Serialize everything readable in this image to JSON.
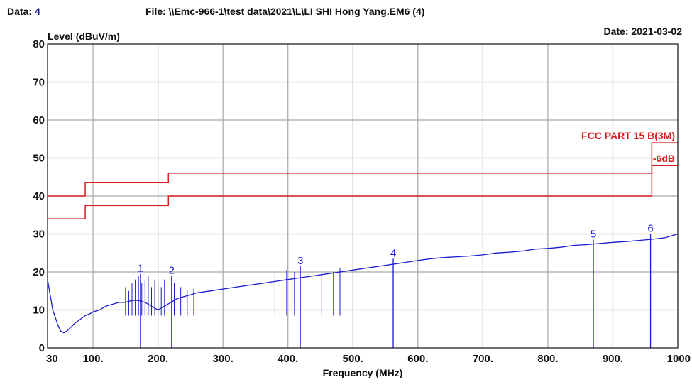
{
  "header": {
    "data_label": "Data:",
    "data_value": "4",
    "file_text": "File: \\\\Emc-966-1\\test data\\2021\\L\\LI SHI Hong Yang.EM6  (4)",
    "date_text": "Date: 2021-03-02"
  },
  "colors": {
    "trace": "#1a1ad0",
    "limit": "#d42020",
    "grid": "#a8a8a8",
    "text": "#111111"
  },
  "chart_data": {
    "type": "line",
    "title": "",
    "xlabel": "Frequency (MHz)",
    "ylabel": "Level (dBuV/m)",
    "xlim": [
      30,
      1000
    ],
    "ylim": [
      0,
      80
    ],
    "grid": true,
    "x_ticks": [
      {
        "value": 30,
        "label": "30"
      },
      {
        "value": 100,
        "label": "100."
      },
      {
        "value": 200,
        "label": "200."
      },
      {
        "value": 300,
        "label": "300."
      },
      {
        "value": 400,
        "label": "400."
      },
      {
        "value": 500,
        "label": "500."
      },
      {
        "value": 600,
        "label": "600."
      },
      {
        "value": 700,
        "label": "700."
      },
      {
        "value": 800,
        "label": "800."
      },
      {
        "value": 900,
        "label": "900."
      },
      {
        "value": 1000,
        "label": "1000"
      }
    ],
    "y_ticks": [
      {
        "value": 0,
        "label": "0"
      },
      {
        "value": 10,
        "label": "10"
      },
      {
        "value": 20,
        "label": "20"
      },
      {
        "value": 30,
        "label": "30"
      },
      {
        "value": 40,
        "label": "40"
      },
      {
        "value": 50,
        "label": "50"
      },
      {
        "value": 60,
        "label": "60"
      },
      {
        "value": 70,
        "label": "70"
      },
      {
        "value": 80,
        "label": "80"
      }
    ],
    "limits": [
      {
        "name": "FCC PART 15 B(3M)",
        "x": [
          30,
          88,
          88,
          216,
          216,
          960,
          960,
          1000
        ],
        "y": [
          40,
          40,
          43.5,
          43.5,
          46,
          46,
          54,
          54
        ]
      },
      {
        "name": "-6dB",
        "x": [
          30,
          88,
          88,
          216,
          216,
          960,
          960,
          1000
        ],
        "y": [
          34,
          34,
          37.5,
          37.5,
          40,
          40,
          48,
          48
        ]
      }
    ],
    "series": [
      {
        "x": [
          30,
          32,
          35,
          38,
          42,
          46,
          50,
          55,
          60,
          66,
          72,
          80,
          88,
          95,
          100,
          110,
          120,
          130,
          140,
          150,
          160,
          170,
          180,
          190,
          200,
          210,
          220,
          230,
          240,
          250,
          260,
          280,
          300,
          320,
          340,
          360,
          380,
          400,
          420,
          440,
          460,
          480,
          500,
          520,
          540,
          560,
          580,
          600,
          620,
          640,
          660,
          680,
          700,
          720,
          740,
          760,
          780,
          800,
          820,
          840,
          860,
          880,
          900,
          920,
          940,
          960,
          980,
          1000
        ],
        "y": [
          18,
          16,
          13,
          10,
          8,
          6,
          4.5,
          4,
          4.5,
          5.5,
          6.5,
          7.5,
          8.5,
          9,
          9.5,
          10,
          11,
          11.5,
          12,
          12,
          12.5,
          12.5,
          12,
          11,
          10,
          11,
          12,
          13,
          13.5,
          14,
          14.5,
          15,
          15.5,
          16,
          16.5,
          17,
          17.5,
          18,
          18.5,
          19,
          19.5,
          20,
          20.5,
          21,
          21.5,
          22,
          22.5,
          23,
          23.5,
          23.8,
          24,
          24.2,
          24.5,
          25,
          25.2,
          25.5,
          26,
          26.2,
          26.5,
          27,
          27.2,
          27.5,
          27.8,
          28,
          28.3,
          28.6,
          29,
          30
        ]
      }
    ],
    "spurs": [
      {
        "x": 150,
        "y": 16
      },
      {
        "x": 155,
        "y": 15
      },
      {
        "x": 160,
        "y": 17
      },
      {
        "x": 165,
        "y": 18
      },
      {
        "x": 170,
        "y": 19
      },
      {
        "x": 175,
        "y": 17
      },
      {
        "x": 180,
        "y": 18
      },
      {
        "x": 185,
        "y": 19
      },
      {
        "x": 190,
        "y": 16
      },
      {
        "x": 195,
        "y": 18
      },
      {
        "x": 200,
        "y": 17
      },
      {
        "x": 205,
        "y": 16
      },
      {
        "x": 210,
        "y": 18
      },
      {
        "x": 225,
        "y": 17
      },
      {
        "x": 235,
        "y": 16
      },
      {
        "x": 245,
        "y": 15
      },
      {
        "x": 255,
        "y": 15.5
      },
      {
        "x": 380,
        "y": 20
      },
      {
        "x": 398,
        "y": 20.5
      },
      {
        "x": 410,
        "y": 20
      },
      {
        "x": 452,
        "y": 19.5
      },
      {
        "x": 470,
        "y": 20
      },
      {
        "x": 480,
        "y": 21
      }
    ],
    "markers": [
      {
        "label": "1",
        "x": 173,
        "y": 19.5
      },
      {
        "label": "2",
        "x": 221,
        "y": 19
      },
      {
        "label": "3",
        "x": 419,
        "y": 21.5
      },
      {
        "label": "4",
        "x": 562,
        "y": 23.5
      },
      {
        "label": "5",
        "x": 870,
        "y": 28.5
      },
      {
        "label": "6",
        "x": 958,
        "y": 30
      }
    ]
  }
}
